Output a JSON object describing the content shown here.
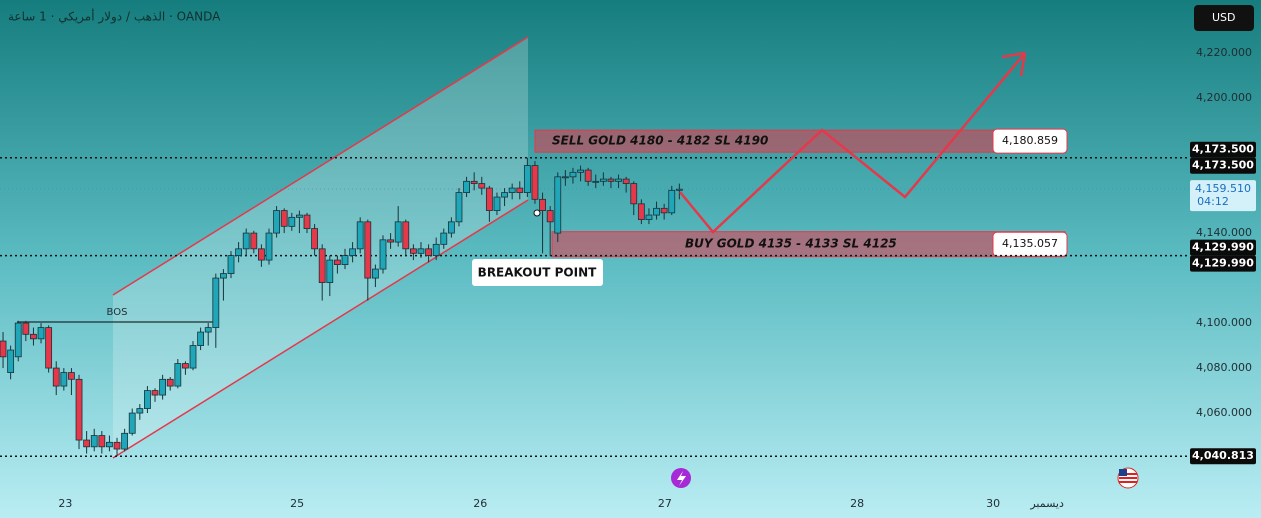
{
  "chart_data": {
    "type": "candlestick",
    "title": "الذهب / دولار أمريكي · 1 ساعة · OANDA",
    "currency": "USD",
    "up_color": "#1fa7b9",
    "down_color": "#e5384a",
    "ohlc": [
      [
        4092,
        4096,
        4080,
        4085
      ],
      [
        4078,
        4090,
        4075,
        4088
      ],
      [
        4085,
        4101,
        4083,
        4100
      ],
      [
        4100,
        4101,
        4092,
        4095
      ],
      [
        4095,
        4098,
        4090,
        4093
      ],
      [
        4093,
        4100,
        4091,
        4098
      ],
      [
        4098,
        4099,
        4078,
        4080
      ],
      [
        4080,
        4083,
        4068,
        4072
      ],
      [
        4072,
        4080,
        4070,
        4078
      ],
      [
        4078,
        4080,
        4068,
        4075
      ],
      [
        4075,
        4077,
        4044,
        4048
      ],
      [
        4048,
        4052,
        4042,
        4045
      ],
      [
        4045,
        4053,
        4043,
        4050
      ],
      [
        4050,
        4052,
        4042,
        4045
      ],
      [
        4045,
        4050,
        4043,
        4047
      ],
      [
        4047,
        4049,
        4041,
        4044
      ],
      [
        4044,
        4053,
        4043,
        4051
      ],
      [
        4051,
        4062,
        4050,
        4060
      ],
      [
        4060,
        4064,
        4057,
        4062
      ],
      [
        4062,
        4072,
        4060,
        4070
      ],
      [
        4070,
        4071,
        4065,
        4068
      ],
      [
        4068,
        4077,
        4066,
        4075
      ],
      [
        4075,
        4076,
        4070,
        4072
      ],
      [
        4072,
        4084,
        4071,
        4082
      ],
      [
        4082,
        4083,
        4077,
        4080
      ],
      [
        4080,
        4092,
        4079,
        4090
      ],
      [
        4090,
        4098,
        4088,
        4096
      ],
      [
        4096,
        4100,
        4090,
        4098
      ],
      [
        4098,
        4122,
        4089,
        4120
      ],
      [
        4120,
        4124,
        4110,
        4122
      ],
      [
        4122,
        4132,
        4120,
        4130
      ],
      [
        4130,
        4136,
        4127,
        4133
      ],
      [
        4133,
        4142,
        4130,
        4140
      ],
      [
        4140,
        4141,
        4131,
        4133
      ],
      [
        4133,
        4135,
        4125,
        4128
      ],
      [
        4128,
        4142,
        4126,
        4140
      ],
      [
        4140,
        4152,
        4138,
        4150
      ],
      [
        4150,
        4151,
        4140,
        4143
      ],
      [
        4143,
        4149,
        4141,
        4147
      ],
      [
        4147,
        4150,
        4140,
        4148
      ],
      [
        4148,
        4149,
        4140,
        4142
      ],
      [
        4142,
        4144,
        4130,
        4133
      ],
      [
        4133,
        4135,
        4110,
        4118
      ],
      [
        4118,
        4130,
        4112,
        4128
      ],
      [
        4128,
        4130,
        4122,
        4126
      ],
      [
        4126,
        4133,
        4124,
        4130
      ],
      [
        4130,
        4136,
        4127,
        4133
      ],
      [
        4133,
        4147,
        4131,
        4145
      ],
      [
        4145,
        4146,
        4110,
        4120
      ],
      [
        4120,
        4126,
        4116,
        4124
      ],
      [
        4124,
        4139,
        4122,
        4137
      ],
      [
        4137,
        4140,
        4133,
        4136
      ],
      [
        4136,
        4152,
        4134,
        4145
      ],
      [
        4145,
        4146,
        4130,
        4133
      ],
      [
        4133,
        4135,
        4128,
        4131
      ],
      [
        4131,
        4136,
        4129,
        4133
      ],
      [
        4133,
        4135,
        4127,
        4130
      ],
      [
        4130,
        4138,
        4128,
        4135
      ],
      [
        4135,
        4142,
        4133,
        4140
      ],
      [
        4140,
        4147,
        4138,
        4145
      ],
      [
        4145,
        4160,
        4143,
        4158
      ],
      [
        4158,
        4165,
        4156,
        4163
      ],
      [
        4163,
        4167,
        4159,
        4162
      ],
      [
        4162,
        4165,
        4157,
        4160
      ],
      [
        4160,
        4161,
        4145,
        4150
      ],
      [
        4150,
        4158,
        4148,
        4156
      ],
      [
        4156,
        4160,
        4152,
        4158
      ],
      [
        4158,
        4162,
        4155,
        4160
      ],
      [
        4160,
        4163,
        4155,
        4158
      ],
      [
        4158,
        4173.5,
        4156,
        4170
      ],
      [
        4170,
        4172,
        4153,
        4155
      ],
      [
        4155,
        4158,
        4131,
        4150
      ],
      [
        4150,
        4152,
        4129.99,
        4145
      ],
      [
        4140,
        4167,
        4136,
        4165
      ],
      [
        4165,
        4168,
        4161,
        4165
      ],
      [
        4165,
        4169,
        4162,
        4167
      ],
      [
        4167,
        4170,
        4163,
        4168
      ],
      [
        4168,
        4169,
        4161,
        4163
      ],
      [
        4163,
        4166,
        4160,
        4163
      ],
      [
        4163,
        4167,
        4161,
        4164
      ],
      [
        4164,
        4165,
        4160,
        4163
      ],
      [
        4163,
        4166,
        4160,
        4164
      ],
      [
        4164,
        4165,
        4158,
        4162
      ],
      [
        4162,
        4163,
        4148,
        4153
      ],
      [
        4153,
        4155,
        4144,
        4146
      ],
      [
        4146,
        4151,
        4144,
        4148
      ],
      [
        4148,
        4154,
        4146,
        4151
      ],
      [
        4151,
        4153,
        4146,
        4149
      ],
      [
        4149,
        4161,
        4148,
        4159
      ],
      [
        4159,
        4162,
        4155,
        4159.51
      ]
    ],
    "ylim": [
      4025.8,
      4243.6
    ],
    "yticks": [
      {
        "value": 4220,
        "label": "4,220.000"
      },
      {
        "value": 4200,
        "label": "4,200.000"
      },
      {
        "value": 4140,
        "label": "4,140.000"
      },
      {
        "value": 4100,
        "label": "4,100.000"
      },
      {
        "value": 4080,
        "label": "4,080.000"
      },
      {
        "value": 4060,
        "label": "4,060.000"
      }
    ],
    "xlim": [
      -0.4,
      156.2
    ],
    "xticks": [
      {
        "value": 8.2,
        "label": "23"
      },
      {
        "value": 38.7,
        "label": "25"
      },
      {
        "value": 62.8,
        "label": "26"
      },
      {
        "value": 87.1,
        "label": "27"
      },
      {
        "value": 112.4,
        "label": "28"
      },
      {
        "value": 130.3,
        "label": "30"
      },
      {
        "value": 137.4,
        "label": "ديسمبر"
      }
    ],
    "levels": [
      {
        "value": 4173.5,
        "label": "4,173.500"
      },
      {
        "value": 4173.5,
        "label": "4,173.500"
      },
      {
        "value": 4129.99,
        "label": "4,129.990"
      },
      {
        "value": 4129.99,
        "label": "4,129.990"
      },
      {
        "value": 4040.813,
        "label": "4,040.813"
      }
    ],
    "last_price": {
      "value": 4159.51,
      "label": "4,159.510",
      "countdown": "04:12"
    },
    "zones": [
      {
        "text": "SELL GOLD 4180 - 4182 SL 4190",
        "price": {
          "value": 4180.859,
          "label": "4,180.859"
        }
      },
      {
        "text": "BUY GOLD 4135 - 4133 SL 4125",
        "price": {
          "value": 4135.057,
          "label": "4,135.057"
        }
      }
    ],
    "annotations": {
      "bos": "BOS",
      "breakout": "BREAKOUT POINT"
    }
  }
}
